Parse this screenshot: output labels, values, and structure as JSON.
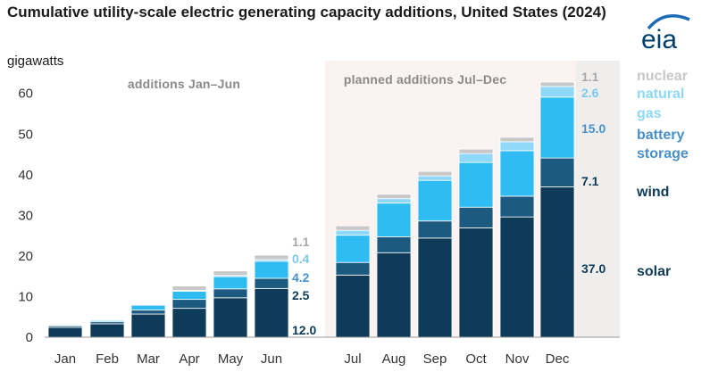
{
  "header": {
    "title": "Cumulative utility-scale electric generating capacity additions, United States (2024)",
    "unit": "gigawatts",
    "logo_text": "eia"
  },
  "colors": {
    "solar": "#0d3b58",
    "wind": "#1d5a80",
    "battery_storage": "#2fbcf3",
    "natural_gas": "#8fd8f8",
    "nuclear": "#c8c8c8",
    "planned_band": "#fbf2f2",
    "dec_gap": "#e9e9e9",
    "axis_text": "#333333",
    "panel_text": "#8a8a8a",
    "logo_blue": "#1e6bb8",
    "logo_text": "#003e6b"
  },
  "chart_data": {
    "type": "bar",
    "stacked": true,
    "categories": [
      "Jan",
      "Feb",
      "Mar",
      "Apr",
      "May",
      "Jun",
      "Jul",
      "Aug",
      "Sep",
      "Oct",
      "Nov",
      "Dec"
    ],
    "ylim": [
      0,
      65
    ],
    "yticks": [
      0,
      10,
      20,
      30,
      40,
      50,
      60
    ],
    "grid": false,
    "panels": [
      {
        "label": "additions Jan–Jun",
        "from": 0,
        "to": 5
      },
      {
        "label": "planned additions Jul–Dec",
        "from": 6,
        "to": 11
      }
    ],
    "legend_placement": "right",
    "series": [
      {
        "name": "solar",
        "color_key": "solar",
        "values": [
          2.4,
          3.3,
          5.7,
          7.1,
          9.7,
          12.0,
          15.3,
          20.8,
          24.4,
          26.9,
          29.6,
          37.0
        ]
      },
      {
        "name": "wind",
        "color_key": "wind",
        "values": [
          0.4,
          0.5,
          1.0,
          2.2,
          2.2,
          2.5,
          3.1,
          3.9,
          4.2,
          5.1,
          5.1,
          7.1
        ]
      },
      {
        "name": "battery storage",
        "color_key": "battery_storage",
        "values": [
          0.2,
          0.3,
          1.2,
          2.0,
          3.0,
          4.2,
          6.7,
          8.3,
          10.0,
          11.0,
          11.2,
          15.0
        ]
      },
      {
        "name": "natural gas",
        "color_key": "natural_gas",
        "values": [
          0.0,
          0.0,
          0.1,
          0.2,
          0.3,
          0.4,
          1.2,
          1.1,
          1.1,
          2.2,
          2.2,
          2.6
        ]
      },
      {
        "name": "nuclear",
        "color_key": "nuclear",
        "values": [
          0.0,
          0.0,
          0.2,
          1.1,
          1.1,
          1.1,
          1.1,
          1.1,
          1.1,
          1.1,
          1.1,
          1.1
        ]
      }
    ],
    "data_labels": {
      "jun": [
        "12.0",
        "2.5",
        "4.2",
        "0.4",
        "1.1"
      ],
      "dec": [
        "37.0",
        "7.1",
        "15.0",
        "2.6",
        "1.1"
      ]
    },
    "legend_entries": [
      "nuclear",
      "natural gas",
      "battery storage",
      "wind",
      "solar"
    ]
  }
}
